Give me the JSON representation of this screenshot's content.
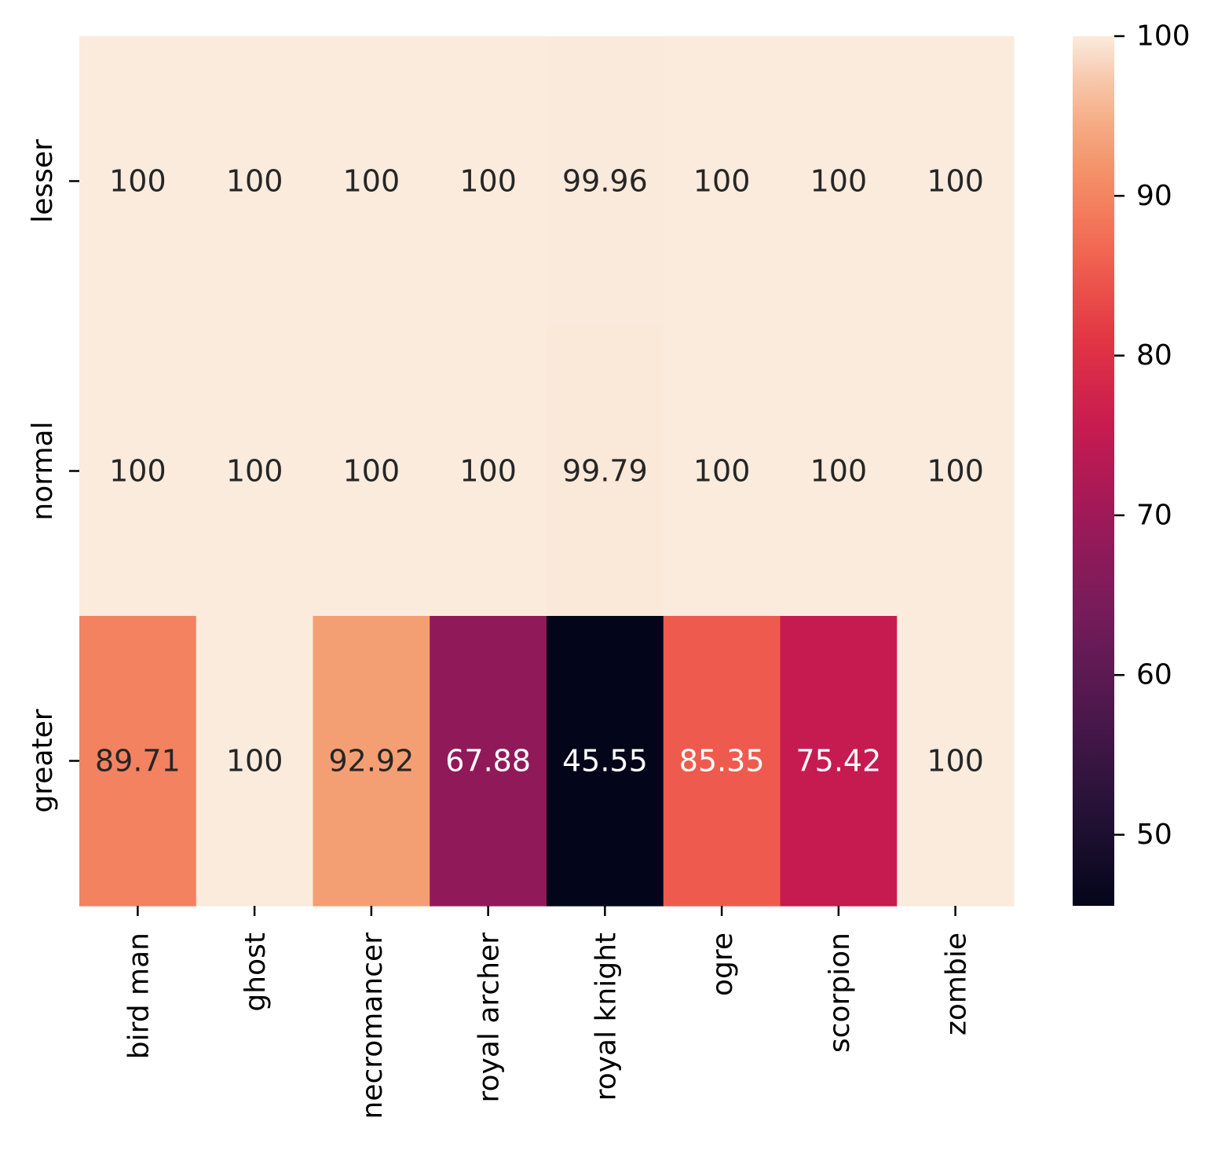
{
  "chart_data": {
    "type": "heatmap",
    "title": "",
    "xlabel": "",
    "ylabel": "",
    "columns": [
      "bird man",
      "ghost",
      "necromancer",
      "royal archer",
      "royal knight",
      "ogre",
      "scorpion",
      "zombie"
    ],
    "rows": [
      "lesser",
      "normal",
      "greater"
    ],
    "values": [
      [
        100,
        100,
        100,
        100,
        99.96,
        100,
        100,
        100
      ],
      [
        100,
        100,
        100,
        100,
        99.79,
        100,
        100,
        100
      ],
      [
        89.71,
        100,
        92.92,
        67.88,
        45.55,
        85.35,
        75.42,
        100
      ]
    ],
    "cell_labels": [
      [
        "100",
        "100",
        "100",
        "100",
        "99.96",
        "100",
        "100",
        "100"
      ],
      [
        "100",
        "100",
        "100",
        "100",
        "99.79",
        "100",
        "100",
        "100"
      ],
      [
        "89.71",
        "100",
        "92.92",
        "67.88",
        "45.55",
        "85.35",
        "75.42",
        "100"
      ]
    ],
    "colormap": "rocket",
    "colorbar": {
      "range": [
        45.55,
        100
      ],
      "ticks": [
        50,
        60,
        70,
        80,
        90,
        100
      ],
      "tick_labels": [
        "50",
        "60",
        "70",
        "80",
        "90",
        "100"
      ]
    },
    "grid": false,
    "legend": "colorbar-right"
  }
}
